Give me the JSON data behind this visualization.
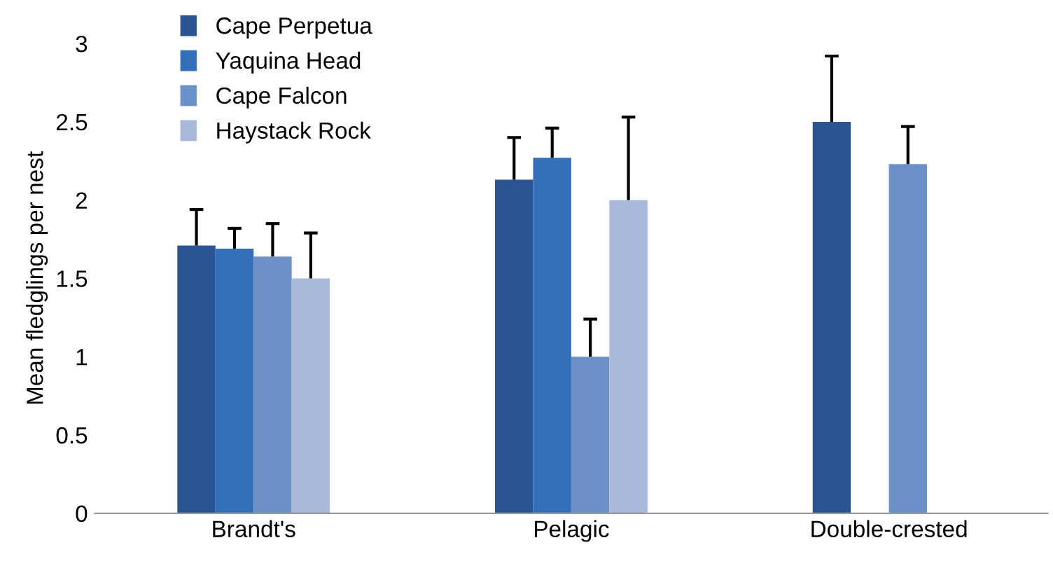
{
  "chart_data": {
    "type": "bar",
    "ylabel": "Mean fledglings per nest",
    "categories": [
      "Brandt's",
      "Pelagic",
      "Double-crested"
    ],
    "series": [
      {
        "name": "Cape Perpetua",
        "color": "#2a5592",
        "values": [
          1.71,
          2.13,
          2.5
        ],
        "errors": [
          [
            1.71,
            1.94
          ],
          [
            2.13,
            2.4
          ],
          [
            2.5,
            2.92
          ]
        ]
      },
      {
        "name": "Yaquina Head",
        "color": "#3370b9",
        "values": [
          1.69,
          2.27,
          null
        ],
        "errors": [
          [
            1.69,
            1.82
          ],
          [
            2.27,
            2.46
          ],
          null
        ]
      },
      {
        "name": "Cape Falcon",
        "color": "#6c91c9",
        "values": [
          1.64,
          1.0,
          2.23
        ],
        "errors": [
          [
            1.64,
            1.85
          ],
          [
            1.0,
            1.24
          ],
          [
            2.23,
            2.47
          ]
        ]
      },
      {
        "name": "Haystack Rock",
        "color": "#a8b9d9",
        "values": [
          1.5,
          2.0,
          null
        ],
        "errors": [
          [
            1.5,
            1.79
          ],
          [
            2.0,
            2.53
          ],
          null
        ]
      }
    ],
    "ylim": [
      0,
      3
    ],
    "yticks": [
      0,
      0.5,
      1,
      1.5,
      2,
      2.5,
      3
    ],
    "grid": false,
    "legend": "top left"
  }
}
